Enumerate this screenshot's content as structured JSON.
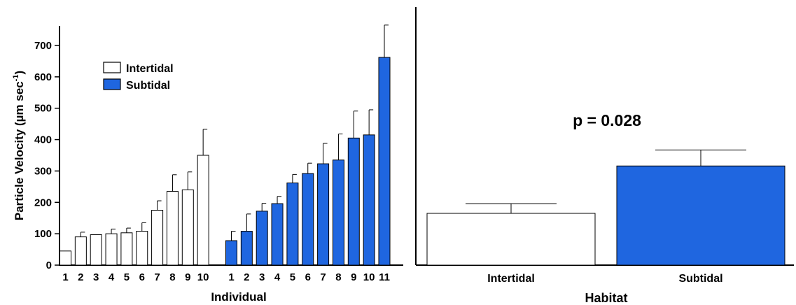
{
  "chart_data": [
    {
      "type": "bar",
      "ylabel_main": "Particle Velocity (µm sec",
      "ylabel_superscript": "-1",
      "ylabel_close": ")",
      "xlabel": "Individual",
      "ylim": [
        0,
        770
      ],
      "yticks": [
        0,
        100,
        200,
        300,
        400,
        500,
        600,
        700
      ],
      "legend": {
        "placement": "top-left",
        "entries": [
          {
            "name": "Intertidal",
            "color": "#ffffff"
          },
          {
            "name": "Subtidal",
            "color": "#1f66e0"
          }
        ]
      },
      "series": [
        {
          "name": "Intertidal",
          "color": "#ffffff",
          "categories": [
            "1",
            "2",
            "3",
            "4",
            "5",
            "6",
            "7",
            "8",
            "9",
            "10"
          ],
          "values": [
            45,
            90,
            97,
            100,
            103,
            108,
            175,
            235,
            240,
            350
          ],
          "errors": [
            0,
            15,
            0,
            15,
            15,
            27,
            30,
            53,
            57,
            83
          ]
        },
        {
          "name": "Subtidal",
          "color": "#1f66e0",
          "categories": [
            "1",
            "2",
            "3",
            "4",
            "5",
            "6",
            "7",
            "8",
            "9",
            "10",
            "11"
          ],
          "values": [
            78,
            108,
            172,
            196,
            262,
            292,
            323,
            335,
            405,
            415,
            662
          ],
          "errors": [
            30,
            55,
            25,
            23,
            27,
            33,
            65,
            83,
            86,
            80,
            103
          ]
        }
      ]
    },
    {
      "type": "bar",
      "xlabel": "Habitat",
      "annotation": "p = 0.028",
      "ylim": [
        0,
        770
      ],
      "categories": [
        "Intertidal",
        "Subtidal"
      ],
      "values": [
        165,
        316
      ],
      "errors": [
        31,
        51
      ],
      "colors": [
        "#ffffff",
        "#1f66e0"
      ]
    }
  ]
}
